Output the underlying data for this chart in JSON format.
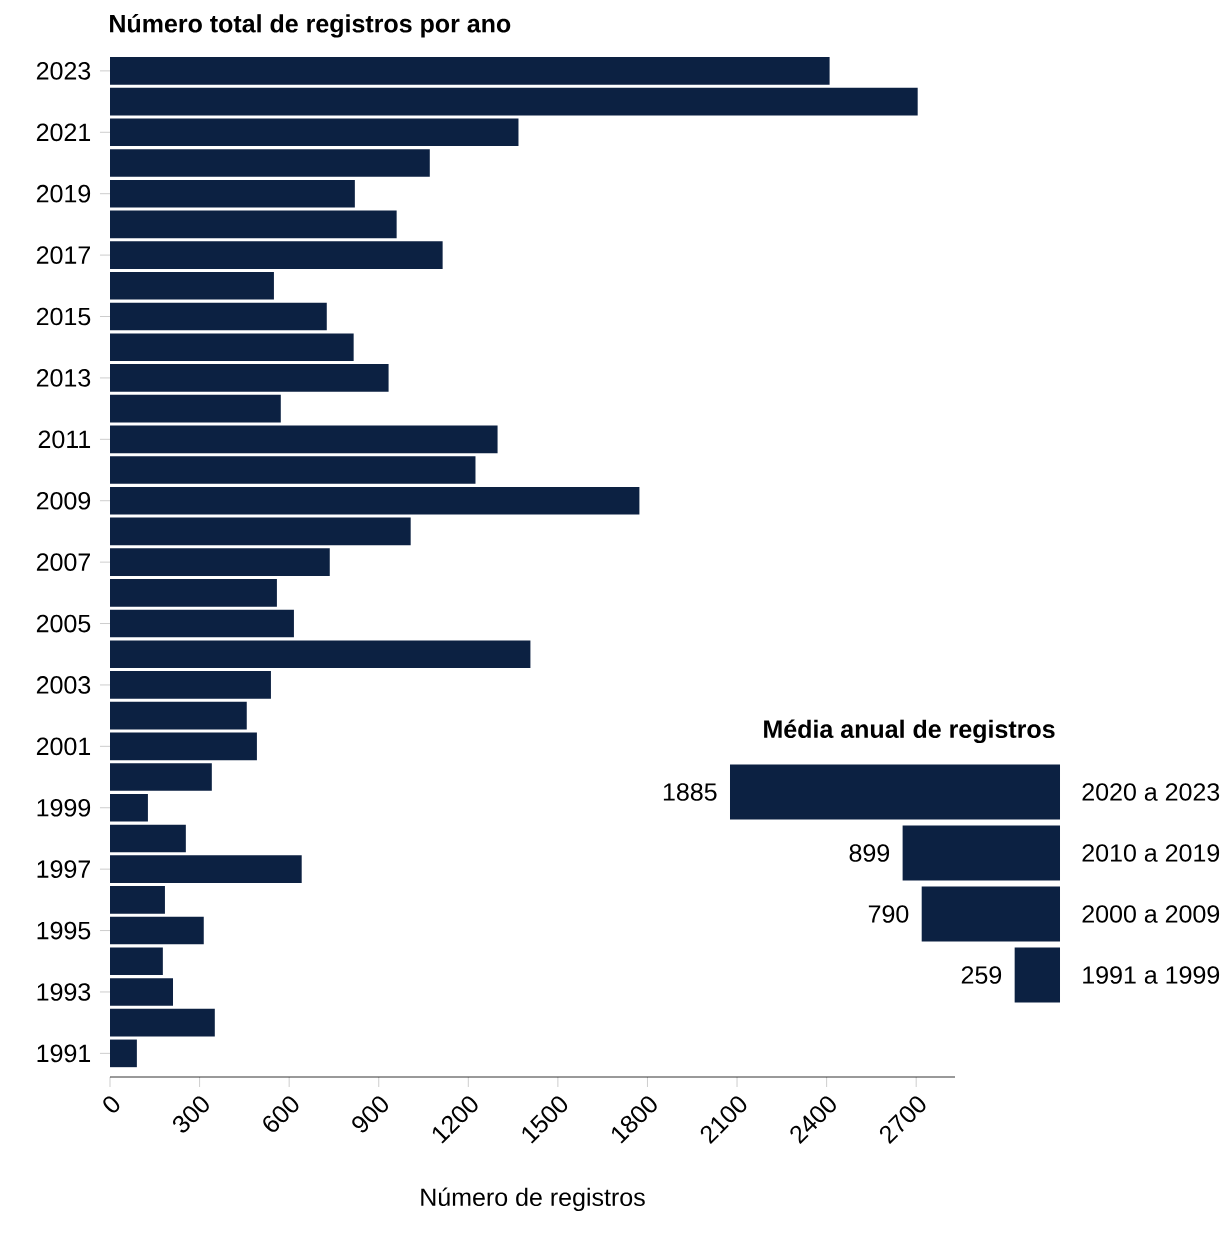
{
  "chart_data": [
    {
      "type": "bar",
      "orientation": "horizontal",
      "title": "Número total de registros por ano",
      "xlabel": "Número de registros",
      "categories": [
        "2023",
        null,
        "2021",
        null,
        "2019",
        null,
        "2017",
        null,
        "2015",
        null,
        "2013",
        null,
        "2011",
        null,
        "2009",
        null,
        "2007",
        null,
        "2005",
        null,
        "2003",
        null,
        "2001",
        null,
        "1999",
        null,
        "1997",
        null,
        "1995",
        null,
        "1993",
        null,
        "1991"
      ],
      "values": [
        2410,
        2705,
        1368,
        1071,
        820,
        960,
        1114,
        549,
        726,
        816,
        933,
        572,
        1298,
        1224,
        1773,
        1007,
        736,
        559,
        616,
        1408,
        539,
        458,
        492,
        341,
        127,
        254,
        642,
        184,
        314,
        177,
        211,
        351,
        90
      ],
      "color": "#0c2142",
      "xlim": [
        0,
        2830
      ],
      "xticks": [
        0,
        300,
        600,
        900,
        1200,
        1500,
        1800,
        2100,
        2400,
        2700
      ]
    },
    {
      "type": "bar",
      "orientation": "horizontal",
      "title": "Média anual de registros",
      "categories": [
        "2020 a 2023",
        "2010 a 2019",
        "2000 a 2009",
        "1991 a 1999"
      ],
      "values": [
        1885,
        899,
        790,
        259
      ],
      "color": "#0c2142",
      "data_labels": true,
      "xlim": [
        1885,
        0
      ],
      "tick_labels": "y"
    }
  ]
}
